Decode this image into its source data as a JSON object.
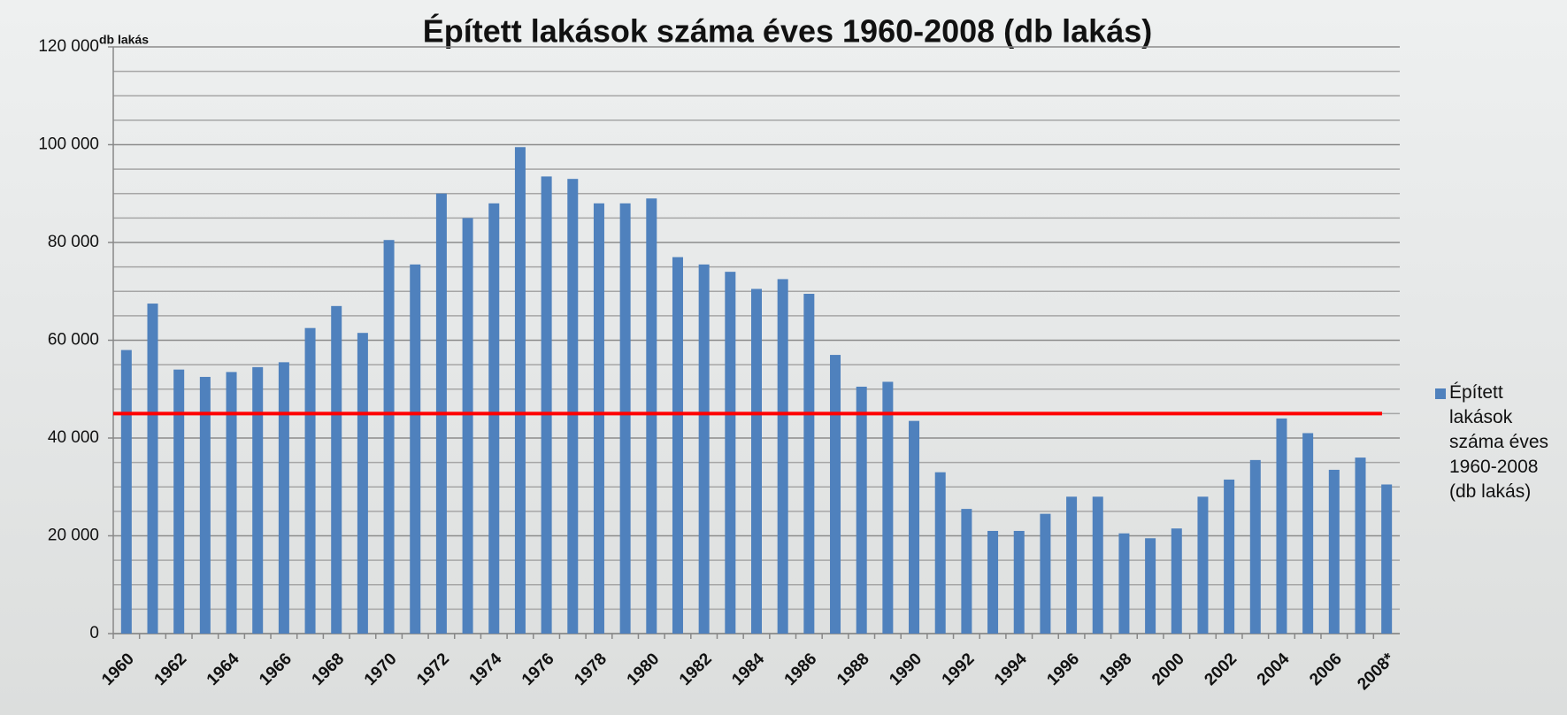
{
  "chart_data": {
    "type": "bar",
    "title": "Épített lakások száma éves 1960-2008 (db lakás)",
    "y_axis_label": "db lakás",
    "categories": [
      "1960",
      null,
      "1962",
      null,
      "1964",
      null,
      "1966",
      null,
      "1968",
      null,
      "1970",
      null,
      "1972",
      null,
      "1974",
      null,
      "1976",
      null,
      "1978",
      null,
      "1980",
      null,
      "1982",
      null,
      "1984",
      null,
      "1986",
      null,
      "1988",
      null,
      "1990",
      null,
      "1992",
      null,
      "1994",
      null,
      "1996",
      null,
      "1998",
      null,
      "2000",
      null,
      "2002",
      null,
      "2004",
      null,
      "2006",
      null,
      "2008*"
    ],
    "series": [
      {
        "name": "Épített lakások száma éves 1960-2008 (db lakás)",
        "color": "#4f81bd",
        "values": [
          58000,
          67500,
          54000,
          52500,
          53500,
          54500,
          55500,
          62500,
          67000,
          61500,
          80500,
          75500,
          90000,
          85000,
          88000,
          99500,
          93500,
          93000,
          88000,
          88000,
          89000,
          77000,
          75500,
          74000,
          70500,
          72500,
          69500,
          57000,
          50500,
          51500,
          43500,
          33000,
          25500,
          21000,
          21000,
          24500,
          28000,
          28000,
          20500,
          19500,
          21500,
          28000,
          31500,
          35500,
          44000,
          41000,
          33500,
          36000,
          30500
        ]
      }
    ],
    "reference_line": {
      "value": 45000,
      "color": "#ff0000"
    },
    "ylim": [
      0,
      120000
    ],
    "yticks": [
      0,
      {
        "value": 20000,
        "label": "20 000"
      },
      {
        "value": 40000,
        "label": "40 000"
      },
      {
        "value": 60000,
        "label": "60 000"
      },
      {
        "value": 80000,
        "label": "80 000"
      },
      {
        "value": 100000,
        "label": "100 000"
      },
      {
        "value": 120000,
        "label": "120 000"
      }
    ],
    "grid": true,
    "legend": "right"
  }
}
